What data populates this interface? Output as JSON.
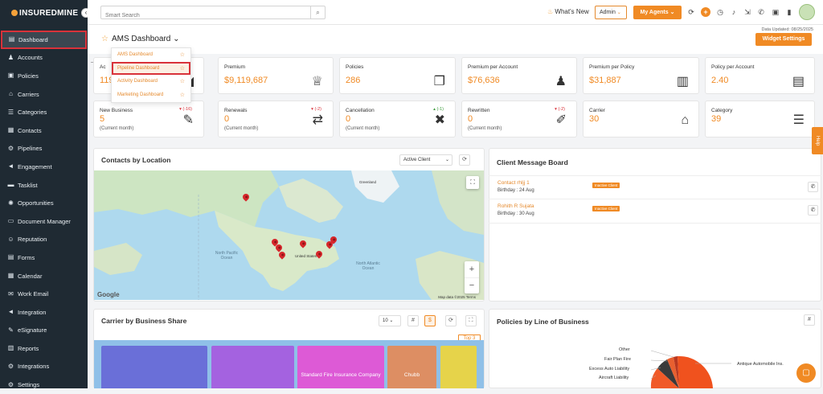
{
  "sidebar": {
    "logo": "INSUREDMINE",
    "items": [
      {
        "label": "Dashboard",
        "icon": "dashboard-icon",
        "glyph": "▤"
      },
      {
        "label": "Accounts",
        "icon": "accounts-icon",
        "glyph": "♟"
      },
      {
        "label": "Policies",
        "icon": "policies-icon",
        "glyph": "▣"
      },
      {
        "label": "Carriers",
        "icon": "carriers-icon",
        "glyph": "⌂"
      },
      {
        "label": "Categories",
        "icon": "categories-icon",
        "glyph": "☰"
      },
      {
        "label": "Contacts",
        "icon": "contacts-icon",
        "glyph": "▦"
      },
      {
        "label": "Pipelines",
        "icon": "pipelines-icon",
        "glyph": "⚙"
      },
      {
        "label": "Engagement",
        "icon": "engagement-icon",
        "glyph": "◄"
      },
      {
        "label": "Tasklist",
        "icon": "tasklist-icon",
        "glyph": "▬"
      },
      {
        "label": "Opportunities",
        "icon": "opportunities-icon",
        "glyph": "✺"
      },
      {
        "label": "Document Manager",
        "icon": "folder-icon",
        "glyph": "▭"
      },
      {
        "label": "Reputation",
        "icon": "reputation-icon",
        "glyph": "☺"
      },
      {
        "label": "Forms",
        "icon": "forms-icon",
        "glyph": "▤"
      },
      {
        "label": "Calendar",
        "icon": "calendar-icon",
        "glyph": "▦"
      },
      {
        "label": "Work Email",
        "icon": "email-icon",
        "glyph": "✉"
      },
      {
        "label": "Integration",
        "icon": "integration-icon",
        "glyph": "◄"
      },
      {
        "label": "eSignature",
        "icon": "esignature-icon",
        "glyph": "✎"
      },
      {
        "label": "Reports",
        "icon": "reports-icon",
        "glyph": "▥"
      },
      {
        "label": "Integrations",
        "icon": "integrations-icon",
        "glyph": "⚙"
      },
      {
        "label": "Settings",
        "icon": "settings-icon",
        "glyph": "⚙"
      }
    ]
  },
  "topbar": {
    "search_placeholder": "Smart Search",
    "whats_new": "What's New",
    "role": "Admin",
    "my_agents": "My Agents"
  },
  "header": {
    "title": "AMS Dashboard",
    "data_updated": "Data Updated: 08/25/2025",
    "widget_settings": "Widget Settings"
  },
  "dashboard_menu": [
    {
      "label": "AMS Dashboard"
    },
    {
      "label": "Pipeline Dashboard"
    },
    {
      "label": "Activity Dashboard"
    },
    {
      "label": "Marketing Dashboard"
    }
  ],
  "stats_row1": [
    {
      "label": "Ac",
      "value": "119",
      "icon": "accounts-card-icon",
      "glyph": "◢"
    },
    {
      "label": "Premium",
      "value": "$9,119,687",
      "icon": "crown-icon",
      "glyph": "♕"
    },
    {
      "label": "Policies",
      "value": "286",
      "icon": "documents-icon",
      "glyph": "❐"
    },
    {
      "label": "Premium per Account",
      "value": "$76,636",
      "icon": "user-star-icon",
      "glyph": "♟"
    },
    {
      "label": "Premium per Policy",
      "value": "$31,887",
      "icon": "building-icon",
      "glyph": "▥"
    },
    {
      "label": "Policy per Account",
      "value": "2.40",
      "icon": "policy-doc-icon",
      "glyph": "▤"
    }
  ],
  "stats_row2": [
    {
      "label": "New Business",
      "value": "5",
      "sub": "(Current month)",
      "change": "▾ (-16)",
      "trend": "red",
      "icon": "new-business-icon",
      "glyph": "✎"
    },
    {
      "label": "Renewals",
      "value": "0",
      "sub": "(Current month)",
      "change": "▾ (-2)",
      "trend": "red",
      "icon": "renewals-icon",
      "glyph": "⇄"
    },
    {
      "label": "Cancellation",
      "value": "0",
      "sub": "(Current month)",
      "change": "▴ (-1)",
      "trend": "green",
      "icon": "cancel-icon",
      "glyph": "✖"
    },
    {
      "label": "Rewritten",
      "value": "0",
      "sub": "(Current month)",
      "change": "▾ (-2)",
      "trend": "red",
      "icon": "rewritten-icon",
      "glyph": "✐"
    },
    {
      "label": "Carrier",
      "value": "30",
      "sub": "",
      "change": "",
      "trend": "",
      "icon": "bank-icon",
      "glyph": "⌂"
    },
    {
      "label": "Category",
      "value": "39",
      "sub": "",
      "change": "",
      "trend": "",
      "icon": "list-icon",
      "glyph": "☰"
    }
  ],
  "contacts_location": {
    "title": "Contacts by Location",
    "filter": "Active Client",
    "credit": "Map data ©2025   Terms",
    "google": "Google",
    "places": [
      "Greenland",
      "North Pacific Ocean",
      "North Atlantic Ocean",
      "United States"
    ]
  },
  "message_board": {
    "title": "Client Message Board",
    "rows": [
      {
        "name": "Contact rhljj 1",
        "birthday": "Birthday : 24 Aug",
        "badge": "Inactive Client"
      },
      {
        "name": "Rohith R Sujata",
        "birthday": "Birthday : 30 Aug",
        "badge": "Inactive Client"
      }
    ]
  },
  "carrier_share": {
    "title": "Carrier by Business Share",
    "page_size": "10",
    "hash": "#",
    "dollar": "$",
    "top_label": "Top 3",
    "blocks": [
      {
        "label": "",
        "color": "#6a6fd8"
      },
      {
        "label": "",
        "color": "#a462e0"
      },
      {
        "label": "Standard Fire Insurance Company",
        "color": "#dd5ad6"
      },
      {
        "label": "Chubb",
        "color": "#dd8e63"
      },
      {
        "label": "",
        "color": "#e6d34a"
      }
    ]
  },
  "lob": {
    "title": "Policies by Line of Business",
    "labels": [
      "Other",
      "Fair Plan Fire",
      "Excess Auto Liability",
      "Aircraft Liability",
      "Antique Automobile Ins."
    ]
  },
  "help": "Help"
}
